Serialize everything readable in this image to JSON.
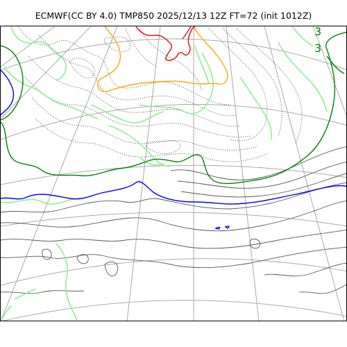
{
  "title": "ECMWF(CC BY 4.0) TMP850 2025/12/13 12Z FT=72 (init 1012Z)",
  "map": {
    "variable": "TMP850",
    "model": "ECMWF",
    "license": "CC BY 4.0",
    "valid_time": "2025/12/13 12Z",
    "forecast_hour": "FT=72",
    "init": "init 1012Z",
    "contour_labels": [
      "3",
      "3"
    ],
    "colors": {
      "graticule": "#a8a8a8",
      "isotherm": "#555555",
      "dotted_isotherm": "#555555",
      "blue_isotherm": "#0000ee",
      "green_isotherm": "#008000",
      "light_green_isotherm": "#90ee90",
      "orange_isotherm": "#ffa500",
      "red_isotherm": "#ee0000",
      "brown_isotherm": "#a52a2a",
      "frame": "#000000"
    }
  }
}
